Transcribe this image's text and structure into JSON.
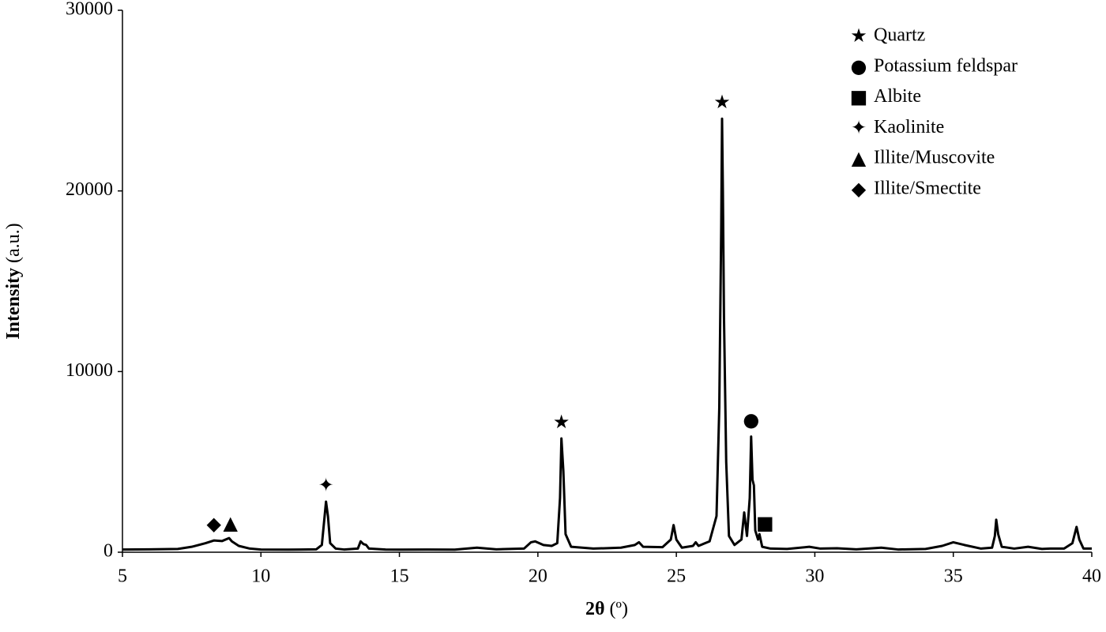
{
  "chart_data": {
    "type": "line",
    "xlabel": [
      "2θ",
      "(º)"
    ],
    "ylabel": [
      "Intensity",
      "(a.u.)"
    ],
    "xlim": [
      5,
      40
    ],
    "xticks": [
      5,
      10,
      15,
      20,
      25,
      30,
      35,
      40
    ],
    "ylim": [
      0,
      30000
    ],
    "yticks": [
      0,
      10000,
      20000,
      30000
    ],
    "x": [
      5,
      6,
      7,
      7.5,
      8,
      8.3,
      8.6,
      8.85,
      8.95,
      9.2,
      9.6,
      10,
      11,
      12,
      12.2,
      12.3,
      12.35,
      12.42,
      12.5,
      12.7,
      13,
      13.5,
      13.6,
      13.7,
      13.8,
      13.9,
      14.5,
      15,
      16,
      17,
      17.8,
      18.5,
      19.5,
      19.75,
      19.9,
      20.2,
      20.5,
      20.7,
      20.8,
      20.85,
      20.92,
      21.0,
      21.2,
      22,
      23,
      23.5,
      23.65,
      23.8,
      24.5,
      24.8,
      24.9,
      25.0,
      25.2,
      25.6,
      25.7,
      25.8,
      26.2,
      26.45,
      26.55,
      26.62,
      26.65,
      26.68,
      26.72,
      26.8,
      26.9,
      27.1,
      27.35,
      27.45,
      27.55,
      27.65,
      27.7,
      27.75,
      27.8,
      27.85,
      27.95,
      28.0,
      28.1,
      28.4,
      29,
      29.8,
      30.2,
      30.8,
      31.5,
      32.4,
      33,
      34,
      34.6,
      35,
      35.4,
      36,
      36.4,
      36.5,
      36.55,
      36.62,
      36.75,
      37.2,
      37.7,
      38.2,
      38.5,
      39,
      39.3,
      39.45,
      39.55,
      39.7,
      40
    ],
    "series": [
      {
        "color": "#000000",
        "values": [
          150,
          160,
          180,
          300,
          500,
          650,
          620,
          780,
          600,
          350,
          200,
          150,
          140,
          160,
          400,
          2000,
          2800,
          2000,
          500,
          200,
          150,
          200,
          600,
          450,
          400,
          200,
          150,
          140,
          150,
          140,
          250,
          160,
          200,
          550,
          600,
          400,
          350,
          500,
          3000,
          6300,
          4500,
          1000,
          300,
          200,
          250,
          400,
          550,
          300,
          280,
          700,
          1500,
          700,
          250,
          350,
          550,
          350,
          600,
          2000,
          8000,
          18000,
          24000,
          20000,
          13000,
          5000,
          900,
          400,
          700,
          2200,
          900,
          3000,
          6400,
          4000,
          3700,
          1200,
          700,
          1000,
          300,
          200,
          180,
          300,
          200,
          220,
          160,
          250,
          150,
          180,
          350,
          550,
          400,
          200,
          250,
          900,
          1800,
          1000,
          300,
          200,
          300,
          180,
          200,
          200,
          500,
          1400,
          700,
          200,
          200
        ]
      }
    ],
    "phases": [
      {
        "name": "Quartz",
        "symbol": "★",
        "peaks": [
          20.85,
          26.65
        ]
      },
      {
        "name": "Potassium feldspar",
        "symbol": "●",
        "peaks": [
          27.7
        ]
      },
      {
        "name": "Albite",
        "symbol": "■",
        "peaks": [
          28.2
        ]
      },
      {
        "name": "Kaolinite",
        "symbol": "✦",
        "peaks": [
          12.35
        ]
      },
      {
        "name": "Illite/Muscovite",
        "symbol": "▲",
        "peaks": [
          8.9
        ]
      },
      {
        "name": "Illite/Smectite",
        "symbol": "◆",
        "peaks": [
          8.3
        ]
      }
    ]
  }
}
